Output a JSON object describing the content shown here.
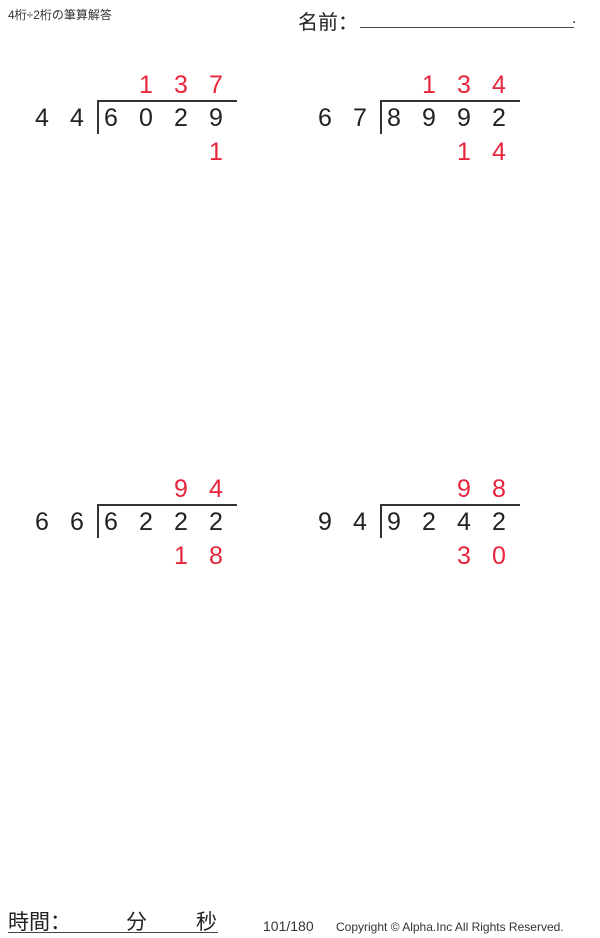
{
  "header": {
    "title": "4桁÷2桁の筆算解答",
    "name_label": "名前：",
    "name_end": "."
  },
  "problems": [
    {
      "divisor": "44",
      "dividend": "6029",
      "quotient": "137",
      "remainder": "1"
    },
    {
      "divisor": "67",
      "dividend": "8992",
      "quotient": "134",
      "remainder": "14"
    },
    {
      "divisor": "66",
      "dividend": "6222",
      "quotient": "94",
      "remainder": "18"
    },
    {
      "divisor": "94",
      "dividend": "9242",
      "quotient": "98",
      "remainder": "30"
    }
  ],
  "footer": {
    "time_label": "時間：",
    "minutes_label": "分",
    "seconds_label": "秒",
    "page": "101/180",
    "copyright": "Copyright © Alpha.Inc All Rights Reserved."
  },
  "colors": {
    "answer": "#e8243c",
    "text": "#222222"
  }
}
